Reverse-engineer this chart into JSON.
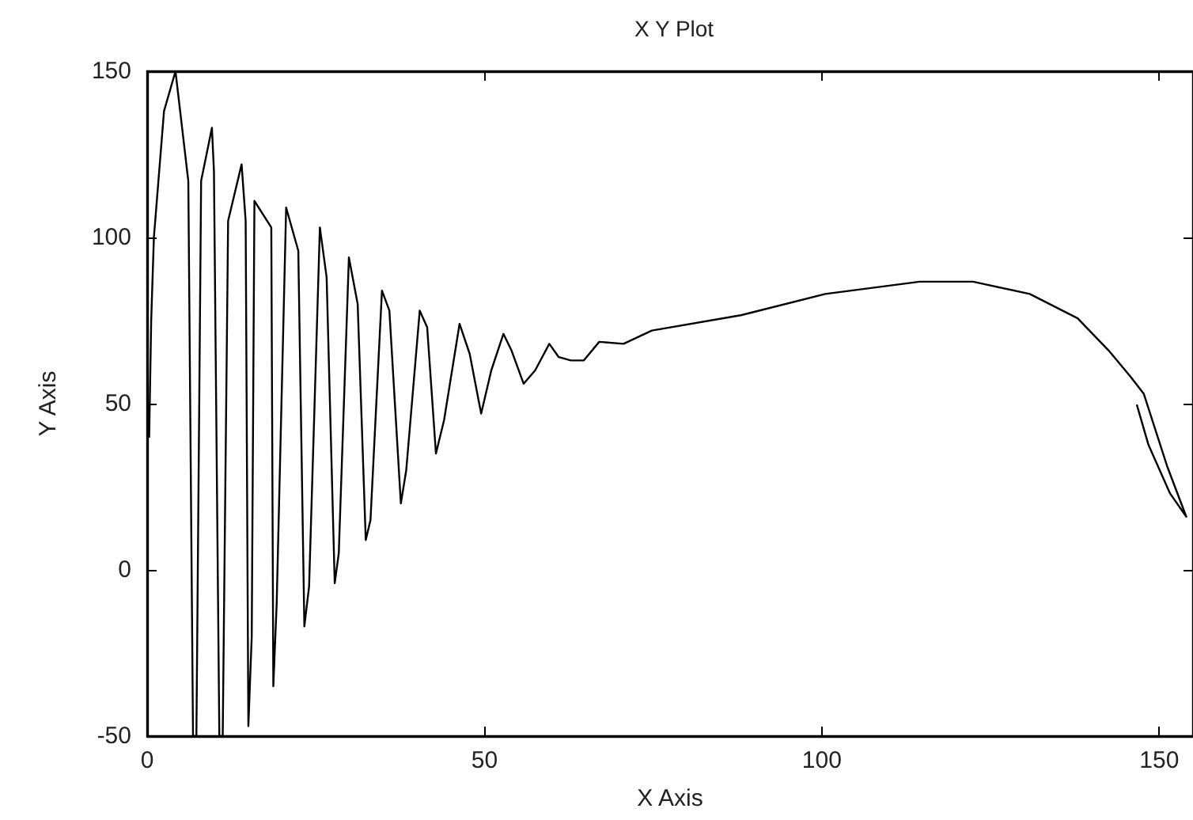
{
  "chart_data": {
    "type": "line",
    "title": "X Y Plot",
    "xlabel": "X Axis",
    "ylabel": "Y Axis",
    "xlim": [
      0,
      155
    ],
    "xticks": [
      0,
      50,
      100,
      150
    ],
    "ylim": [
      -50,
      150
    ],
    "yticks": [
      -50,
      0,
      50,
      100,
      150
    ],
    "grid": false,
    "marker": "none",
    "line_style": "solid",
    "series": [
      {
        "color": "#000000",
        "x": [
          0.3,
          0.6,
          1,
          2.5,
          4.2,
          6.1,
          6.8,
          7.3,
          8,
          9.6,
          9.9,
          10.7,
          11.2,
          12,
          14,
          14.6,
          15,
          15.5,
          15.9,
          18.4,
          18.7,
          19.2,
          20.6,
          22.4,
          23.3,
          24,
          25.6,
          26.6,
          27.8,
          28.4,
          29.9,
          31.2,
          32.4,
          33.1,
          34.8,
          35.9,
          37.6,
          38.4,
          40.4,
          41.5,
          42.8,
          44,
          46.3,
          47.8,
          49.5,
          51,
          52.8,
          54,
          55.8,
          57.5,
          59.6,
          61,
          62.8,
          64.7,
          67,
          70.6,
          74.8,
          88,
          100.5,
          114.5,
          122.4,
          130.8,
          137.9,
          142.5,
          145.8,
          147.7,
          151.2,
          154,
          151.6,
          148.4,
          146.7
        ],
        "values": [
          40,
          75,
          100,
          138,
          150,
          117,
          -50,
          -50,
          117,
          133,
          120,
          -50,
          -50,
          105,
          122,
          105,
          -47,
          -20,
          111,
          103,
          -35,
          -10,
          109,
          96,
          -17,
          -5,
          103,
          88,
          -4,
          5,
          94,
          80,
          9,
          15,
          84,
          78,
          20,
          30,
          78,
          73,
          35,
          45,
          74,
          65,
          47,
          60,
          71,
          66,
          56,
          60,
          68,
          64,
          63,
          63,
          68.6,
          68,
          72,
          76.6,
          83,
          86.7,
          86.7,
          83,
          75.7,
          66,
          58,
          53,
          31,
          16,
          23,
          37.6,
          49.5
        ]
      }
    ]
  }
}
